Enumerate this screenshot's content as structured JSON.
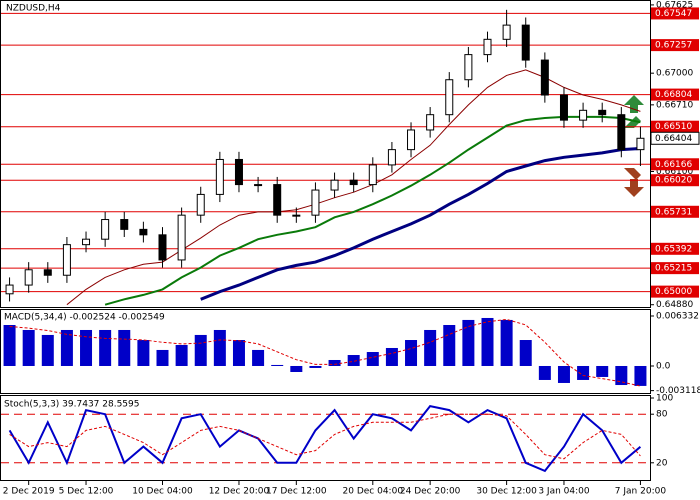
{
  "chart_data": {
    "type": "candlestick",
    "title": "NZDUSD,H4",
    "categories": [
      null,
      "2 Dec 2019",
      null,
      null,
      "5 Dec 12:00",
      null,
      null,
      null,
      "10 Dec 04:00",
      null,
      null,
      null,
      "12 Dec 20:00",
      null,
      null,
      "17 Dec 12:00",
      null,
      null,
      null,
      "20 Dec 04:00",
      null,
      null,
      "24 Dec 20:00",
      null,
      null,
      null,
      "30 Dec 12:00",
      null,
      null,
      "3 Jan 04:00",
      null,
      null,
      null,
      "7 Jan 20:00"
    ],
    "open": [
      0.6498,
      0.6506,
      0.652,
      0.6515,
      0.6543,
      0.6548,
      0.6566,
      0.6557,
      0.6552,
      0.6529,
      0.657,
      0.6589,
      0.6621,
      0.6598,
      0.6598,
      0.657,
      0.657,
      0.6593,
      0.6602,
      0.6598,
      0.6616,
      0.663,
      0.6648,
      0.6662,
      0.6694,
      0.6717,
      0.6731,
      0.6744,
      0.6712,
      0.668,
      0.6657,
      0.6666,
      0.6662,
      0.663
    ],
    "high": [
      0.6513,
      0.6527,
      0.6527,
      0.655,
      0.6555,
      0.6573,
      0.6573,
      0.6564,
      0.6559,
      0.6577,
      0.6596,
      0.6628,
      0.6628,
      0.6605,
      0.6605,
      0.6577,
      0.66,
      0.6609,
      0.6609,
      0.6623,
      0.6637,
      0.6655,
      0.6669,
      0.6701,
      0.6724,
      0.6738,
      0.6758,
      0.6751,
      0.6719,
      0.6687,
      0.6673,
      0.6673,
      0.6669,
      0.6651
    ],
    "low": [
      0.6491,
      0.6499,
      0.6508,
      0.6508,
      0.6536,
      0.6541,
      0.655,
      0.6545,
      0.6522,
      0.6522,
      0.6563,
      0.6582,
      0.6591,
      0.6591,
      0.6563,
      0.6563,
      0.6563,
      0.6586,
      0.6591,
      0.6591,
      0.6609,
      0.6623,
      0.6641,
      0.6655,
      0.6687,
      0.671,
      0.6724,
      0.6705,
      0.6673,
      0.665,
      0.665,
      0.6655,
      0.6623,
      0.6615
    ],
    "close": [
      0.6506,
      0.652,
      0.6515,
      0.6543,
      0.6548,
      0.6566,
      0.6557,
      0.6552,
      0.6529,
      0.657,
      0.6589,
      0.6621,
      0.6598,
      0.6598,
      0.657,
      0.657,
      0.6593,
      0.6602,
      0.6598,
      0.6616,
      0.663,
      0.6648,
      0.6662,
      0.6694,
      0.6717,
      0.6731,
      0.6744,
      0.6712,
      0.668,
      0.6657,
      0.6666,
      0.6662,
      0.663,
      0.66404
    ],
    "up_color": "#ffffff",
    "down_color": "#000000",
    "ylim": [
      0.6485,
      0.6767
    ],
    "yticks": [
      0.67625,
      {
        "value": 0.67,
        "label": "0.67000"
      },
      {
        "value": 0.6671,
        "label": "0.66710"
      },
      {
        "value": 0.661,
        "label": "0.66100"
      },
      {
        "value": 0.6488,
        "label": "0.64880"
      }
    ],
    "levels": [
      0.67547,
      0.67257,
      0.66804,
      {
        "value": 0.6651,
        "label": "0.66510"
      },
      0.66166,
      {
        "value": 0.6602,
        "label": "0.66020"
      },
      0.65731,
      0.65392,
      0.65215,
      {
        "value": 0.65,
        "label": "0.65000"
      }
    ],
    "level_color": "#e00000",
    "overlays": [
      {
        "color": "#8b0000",
        "width": 1,
        "values": [
          null,
          null,
          null,
          0.6488,
          0.6502,
          0.6513,
          0.652,
          0.6525,
          0.6527,
          0.6538,
          0.6549,
          0.6561,
          0.657,
          0.6573,
          0.6573,
          0.6575,
          0.658,
          0.6586,
          0.6591,
          0.6598,
          0.6607,
          0.6621,
          0.6634,
          0.6653,
          0.6671,
          0.6687,
          0.6698,
          0.6703,
          0.6696,
          0.6687,
          0.668,
          0.6676,
          0.6671,
          0.6665
        ]
      },
      {
        "color": "#0a7a0a",
        "width": 2,
        "values": [
          null,
          null,
          null,
          null,
          null,
          0.6488,
          0.6493,
          0.6497,
          0.6502,
          0.6513,
          0.6522,
          0.6533,
          0.654,
          0.6548,
          0.6552,
          0.6555,
          0.6559,
          0.6568,
          0.6573,
          0.658,
          0.6588,
          0.6597,
          0.6607,
          0.6618,
          0.663,
          0.6641,
          0.6652,
          0.6657,
          0.6659,
          0.666,
          0.666,
          0.666,
          0.6659,
          0.6655
        ]
      },
      {
        "color": "#000080",
        "width": 3,
        "values": [
          null,
          null,
          null,
          null,
          null,
          null,
          null,
          null,
          null,
          null,
          0.6493,
          0.65,
          0.6506,
          0.6513,
          0.652,
          0.6524,
          0.6527,
          0.6533,
          0.654,
          0.6548,
          0.6555,
          0.6562,
          0.657,
          0.658,
          0.6589,
          0.6599,
          0.661,
          0.6615,
          0.662,
          0.6623,
          0.6625,
          0.6627,
          0.663,
          0.6631
        ]
      }
    ],
    "macd": {
      "title": "MACD(5,34,4) -0.002524 -0.002549",
      "color": "#0000c8",
      "signal_color": "#e00000",
      "histogram": [
        0.00519,
        0.00456,
        0.00393,
        0.00456,
        0.00456,
        0.00456,
        0.00456,
        0.00329,
        0.00203,
        0.00266,
        0.00393,
        0.00456,
        0.00329,
        0.00203,
        0.00013,
        -0.00076,
        -0.00025,
        0.00076,
        0.00139,
        0.00177,
        0.00228,
        0.00329,
        0.00456,
        0.00519,
        0.00583,
        0.00608,
        0.00583,
        0.00329,
        -0.00177,
        -0.00215,
        -0.00177,
        -0.00139,
        -0.00241,
        -0.002524
      ],
      "signal": [
        0.005,
        0.0048,
        0.0045,
        0.004,
        0.0037,
        0.0035,
        0.0034,
        0.0033,
        0.003,
        0.0028,
        0.0029,
        0.0033,
        0.0032,
        0.0028,
        0.0018,
        0.0008,
        0.0002,
        0.0002,
        0.0006,
        0.0011,
        0.0016,
        0.0022,
        0.003,
        0.004,
        0.005,
        0.0056,
        0.0059,
        0.0052,
        0.003,
        0.0005,
        -0.0012,
        -0.0016,
        -0.002,
        -0.002549
      ],
      "ylim": [
        -0.00342,
        0.00709
      ],
      "yticks": [
        0.006332,
        {
          "value": 0,
          "label": "0.0"
        },
        -0.003118
      ]
    },
    "stochastic": {
      "title": "Stoch(5,3,3) 39.7437 28.5595",
      "k_color": "#0000c8",
      "d_color": "#e00000",
      "k": [
        60,
        20,
        70,
        20,
        85,
        80,
        20,
        40,
        20,
        75,
        80,
        40,
        60,
        50,
        20,
        20,
        60,
        85,
        50,
        80,
        75,
        60,
        90,
        85,
        70,
        85,
        75,
        20,
        10,
        40,
        80,
        60,
        20,
        39.7437
      ],
      "d": [
        55,
        40,
        45,
        40,
        60,
        65,
        55,
        45,
        30,
        45,
        60,
        65,
        60,
        50,
        40,
        30,
        35,
        55,
        65,
        70,
        70,
        70,
        75,
        80,
        80,
        80,
        78,
        55,
        30,
        25,
        45,
        60,
        55,
        28.5595
      ],
      "ylim": [
        0,
        100
      ],
      "yticks": [
        100,
        80,
        20
      ],
      "levels": [
        80,
        20
      ]
    }
  }
}
